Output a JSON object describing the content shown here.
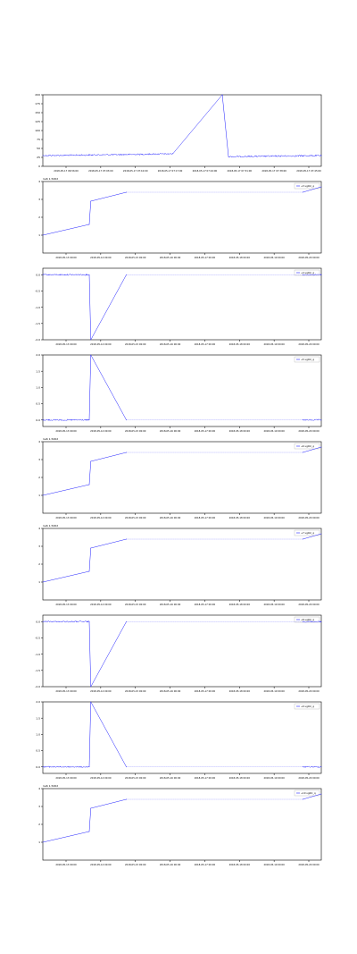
{
  "chart_data": [
    {
      "type": "line",
      "title": "",
      "offset_text": "",
      "legend": "",
      "x": [
        "2018-05-17 07:00:00",
        "2018-05-17 07:27:00",
        "2018-05-17 07:42:00",
        "2018-05-17 07:58:00",
        "2018-05-17 08:00:00",
        "2018-05-17 08:30:00"
      ],
      "y": [
        30,
        33,
        35,
        200,
        27,
        30
      ],
      "ylim": [
        0,
        200
      ],
      "ytick_labels": [
        "0",
        "25",
        "50",
        "75",
        "100",
        "125",
        "150",
        "175",
        "200"
      ],
      "xtick_labels": [
        "2018-05-17 06:56:00",
        "2018-05-17 07:03:00",
        "2018-05-17 07:10:00",
        "2018-05-17 07:17:00",
        "2018-05-17 07:24:00",
        "2018-05-17 07:31:00",
        "2018-05-17 07:38:00",
        "2018-05-17 07:45:00"
      ],
      "noisy": true,
      "noise_amplitude": 2
    },
    {
      "type": "line",
      "title": "",
      "offset_text": "1e6 1.5262",
      "legend": "+3  ugbtc_q",
      "x": [
        "2018-05-13 00:00:00",
        "2018-05-14 06:00:00",
        "2018-05-14 07:00:00",
        "2018-05-15 06:00:00",
        "2018-05-20 00:00:00",
        "2018-05-20 12:00:00"
      ],
      "y": [
        1.0,
        1.6,
        2.9,
        3.4,
        3.4,
        3.7
      ],
      "ylim": [
        0,
        4
      ],
      "ytick_labels": [
        "1",
        "2",
        "3",
        "4"
      ],
      "xtick_labels": [
        "2018-05-13 00:00",
        "2018-05-14 00:00",
        "2018-05-15 00:00",
        "2018-05-16 00:00",
        "2018-05-17 00:00",
        "2018-05-18 00:00",
        "2018-05-19 00:00",
        "2018-05-20 00:00"
      ],
      "gaps": [
        [
          3,
          4
        ]
      ],
      "noisy": false
    },
    {
      "type": "line",
      "title": "",
      "offset_text": "",
      "legend": "+4  ugbtc_q",
      "x": [
        "2018-05-13 00:00:00",
        "2018-05-14 06:00:00",
        "2018-05-14 07:00:00",
        "2018-05-15 06:00:00",
        "2018-05-20 00:00:00",
        "2018-05-20 12:00:00"
      ],
      "y": [
        0,
        0,
        -2.0,
        0,
        0,
        0
      ],
      "ylim": [
        -2.0,
        0.2
      ],
      "ytick_labels": [
        "-2.0",
        "-1.5",
        "-1.0",
        "-0.5",
        "0.0"
      ],
      "xtick_labels": [
        "2018-05-13 00:00",
        "2018-05-14 00:00",
        "2018-05-15 00:00",
        "2018-05-16 00:00",
        "2018-05-17 00:00",
        "2018-05-18 00:00",
        "2018-05-19 00:00",
        "2018-05-20 00:00"
      ],
      "gaps": [
        [
          3,
          4
        ]
      ],
      "noisy": true,
      "noise_amplitude": 0.02
    },
    {
      "type": "line",
      "title": "",
      "offset_text": "",
      "legend": "+5  ugbtc_q",
      "x": [
        "2018-05-13 00:00:00",
        "2018-05-14 06:00:00",
        "2018-05-14 07:00:00",
        "2018-05-15 06:00:00",
        "2018-05-20 00:00:00",
        "2018-05-20 12:00:00"
      ],
      "y": [
        0,
        0,
        2.0,
        0,
        0,
        0
      ],
      "ylim": [
        -0.2,
        2.0
      ],
      "ytick_labels": [
        "0.0",
        "0.5",
        "1.0",
        "1.5",
        "2.0"
      ],
      "xtick_labels": [
        "2018-05-13 00:00",
        "2018-05-14 00:00",
        "2018-05-15 00:00",
        "2018-05-16 00:00",
        "2018-05-17 00:00",
        "2018-05-18 00:00",
        "2018-05-19 00:00",
        "2018-05-20 00:00"
      ],
      "gaps": [
        [
          3,
          4
        ]
      ],
      "noisy": true,
      "noise_amplitude": 0.02
    },
    {
      "type": "line",
      "title": "",
      "offset_text": "1e6 1.5262",
      "legend": "+6  ugbtc_q",
      "x": [
        "2018-05-13 00:00:00",
        "2018-05-14 06:00:00",
        "2018-05-14 07:00:00",
        "2018-05-15 06:00:00",
        "2018-05-20 00:00:00",
        "2018-05-20 12:00:00"
      ],
      "y": [
        1.0,
        1.6,
        2.9,
        3.4,
        3.4,
        3.7
      ],
      "ylim": [
        0,
        4
      ],
      "ytick_labels": [
        "1",
        "2",
        "3",
        "4"
      ],
      "xtick_labels": [
        "2018-05-13 00:00",
        "2018-05-14 00:00",
        "2018-05-15 00:00",
        "2018-05-16 00:00",
        "2018-05-17 00:00",
        "2018-05-18 00:00",
        "2018-05-19 00:00",
        "2018-05-20 00:00"
      ],
      "gaps": [
        [
          3,
          4
        ]
      ],
      "noisy": false
    },
    {
      "type": "line",
      "title": "",
      "offset_text": "1e6 1.5262",
      "legend": "+7  ugbtc_q",
      "x": [
        "2018-05-13 00:00:00",
        "2018-05-14 06:00:00",
        "2018-05-14 07:00:00",
        "2018-05-15 06:00:00",
        "2018-05-20 00:00:00",
        "2018-05-20 12:00:00"
      ],
      "y": [
        1.0,
        1.6,
        2.9,
        3.4,
        3.4,
        3.7
      ],
      "ylim": [
        0,
        4
      ],
      "ytick_labels": [
        "1",
        "2",
        "3",
        "4"
      ],
      "xtick_labels": [
        "2018-05-13 00:00",
        "2018-05-14 00:00",
        "2018-05-15 00:00",
        "2018-05-16 00:00",
        "2018-05-17 00:00",
        "2018-05-18 00:00",
        "2018-05-19 00:00",
        "2018-05-20 00:00"
      ],
      "gaps": [
        [
          3,
          4
        ]
      ],
      "noisy": false
    },
    {
      "type": "line",
      "title": "",
      "offset_text": "",
      "legend": "+8  ugbtc_q",
      "x": [
        "2018-05-13 00:00:00",
        "2018-05-14 06:00:00",
        "2018-05-14 07:00:00",
        "2018-05-15 06:00:00",
        "2018-05-20 00:00:00",
        "2018-05-20 12:00:00"
      ],
      "y": [
        0,
        0,
        -2.0,
        0,
        0,
        0
      ],
      "ylim": [
        -2.0,
        0.2
      ],
      "ytick_labels": [
        "-2.0",
        "-1.5",
        "-1.0",
        "-0.5",
        "0.0"
      ],
      "xtick_labels": [
        "2018-05-13 00:00",
        "2018-05-14 00:00",
        "2018-05-15 00:00",
        "2018-05-16 00:00",
        "2018-05-17 00:00",
        "2018-05-18 00:00",
        "2018-05-19 00:00",
        "2018-05-20 00:00"
      ],
      "gaps": [
        [
          3,
          4
        ]
      ],
      "noisy": true,
      "noise_amplitude": 0.02
    },
    {
      "type": "line",
      "title": "",
      "offset_text": "",
      "legend": "+9  ugbtc_q",
      "x": [
        "2018-05-13 00:00:00",
        "2018-05-14 06:00:00",
        "2018-05-14 07:00:00",
        "2018-05-15 06:00:00",
        "2018-05-20 00:00:00",
        "2018-05-20 12:00:00"
      ],
      "y": [
        0,
        0,
        2.0,
        0,
        0,
        0
      ],
      "ylim": [
        -0.2,
        2.0
      ],
      "ytick_labels": [
        "0.0",
        "0.5",
        "1.0",
        "1.5",
        "2.0"
      ],
      "xtick_labels": [
        "2018-05-13 00:00",
        "2018-05-14 00:00",
        "2018-05-15 00:00",
        "2018-05-16 00:00",
        "2018-05-17 00:00",
        "2018-05-18 00:00",
        "2018-05-19 00:00",
        "2018-05-20 00:00"
      ],
      "gaps": [
        [
          3,
          4
        ]
      ],
      "noisy": true,
      "noise_amplitude": 0.02
    },
    {
      "type": "line",
      "title": "",
      "offset_text": "1e6 1.5262",
      "legend": "+10  ugbtc_q",
      "x": [
        "2018-05-13 00:00:00",
        "2018-05-14 06:00:00",
        "2018-05-14 07:00:00",
        "2018-05-15 06:00:00",
        "2018-05-20 00:00:00",
        "2018-05-20 12:00:00"
      ],
      "y": [
        1.0,
        1.6,
        2.9,
        3.4,
        3.4,
        3.7
      ],
      "ylim": [
        0,
        4
      ],
      "ytick_labels": [
        "1",
        "2",
        "3",
        "4"
      ],
      "xtick_labels": [
        "2018-05-13 00:00",
        "2018-05-14 00:00",
        "2018-05-15 00:00",
        "2018-05-16 00:00",
        "2018-05-17 00:00",
        "2018-05-18 00:00",
        "2018-05-19 00:00",
        "2018-05-20 00:00"
      ],
      "gaps": [
        [
          3,
          4
        ]
      ],
      "noisy": false
    }
  ],
  "colors": {
    "line": "#1f1fff",
    "axis": "#000000",
    "gap_dotted": "#6666ff",
    "background": "#ffffff"
  }
}
